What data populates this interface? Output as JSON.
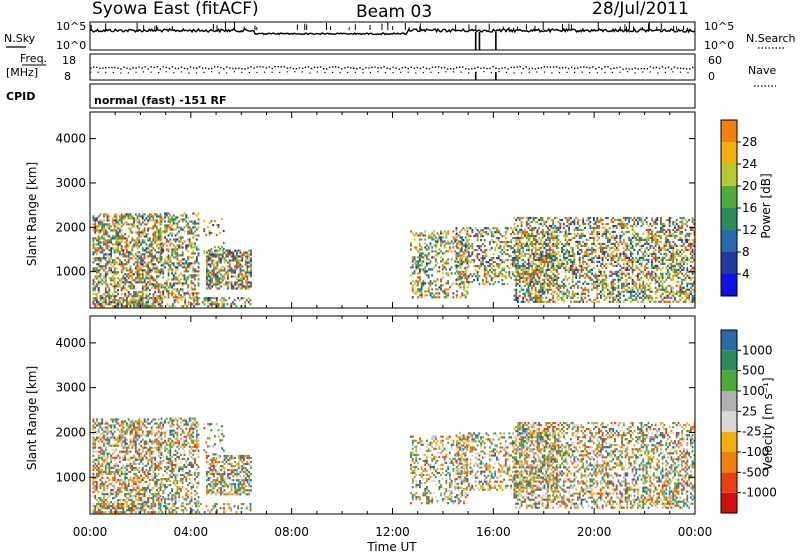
{
  "header": {
    "station": "Syowa East (fitACF)",
    "beam": "Beam 03",
    "date": "28/Jul/2011"
  },
  "strips": {
    "nsky_label": "N.Sky",
    "nsearch_label": "N.Search",
    "noise_ticks": [
      "10^5",
      "10^0"
    ],
    "freq_label": "Freq.",
    "freq_unit": "[MHz]",
    "freq_ticks": [
      "18",
      "8"
    ],
    "nave_label": "Nave",
    "nave_ticks": [
      "60",
      "0"
    ],
    "cpid_label": "CPID",
    "cpid_text": "normal (fast) -151 RF"
  },
  "colors": {
    "power": [
      "#1010e0",
      "#1e3a9a",
      "#2a6aa8",
      "#2f8a5a",
      "#4faa3a",
      "#b8c830",
      "#f0b010",
      "#f08010",
      "#e84010",
      "#d01010"
    ],
    "velocity": [
      "#d01010",
      "#e84010",
      "#f08010",
      "#f0b010",
      "#d8d8d8",
      "#b0b0b0",
      "#4caa3a",
      "#2f8a5a",
      "#2a6aa8",
      "#1e3a9a"
    ]
  },
  "chart_data": [
    {
      "type": "heatmap",
      "name": "power",
      "ylabel": "Slant Range [km]",
      "xlabel": "",
      "ylim": [
        180,
        4600
      ],
      "yticks": [
        1000,
        2000,
        3000,
        4000
      ],
      "xlim_hours": [
        0,
        24
      ],
      "xtick_labels": [
        "00:00",
        "04:00",
        "08:00",
        "12:00",
        "16:00",
        "20:00",
        "00:00"
      ],
      "colorbar_label": "Power [dB]",
      "colorbar_ticks": [
        "4",
        "8",
        "12",
        "16",
        "20",
        "24",
        "28"
      ],
      "colorbar_range": [
        0,
        32
      ]
    },
    {
      "type": "heatmap",
      "name": "velocity",
      "ylabel": "Slant Range [km]",
      "xlabel": "Time UT",
      "ylim": [
        180,
        4600
      ],
      "yticks": [
        1000,
        2000,
        3000,
        4000
      ],
      "xlim_hours": [
        0,
        24
      ],
      "xtick_labels": [
        "00:00",
        "04:00",
        "08:00",
        "12:00",
        "16:00",
        "20:00",
        "00:00"
      ],
      "colorbar_label": "Velocity [m s⁻¹]",
      "colorbar_ticks": [
        "1000",
        "500",
        "100",
        "25",
        "-25",
        "-100",
        "-500",
        "-1000"
      ]
    }
  ]
}
